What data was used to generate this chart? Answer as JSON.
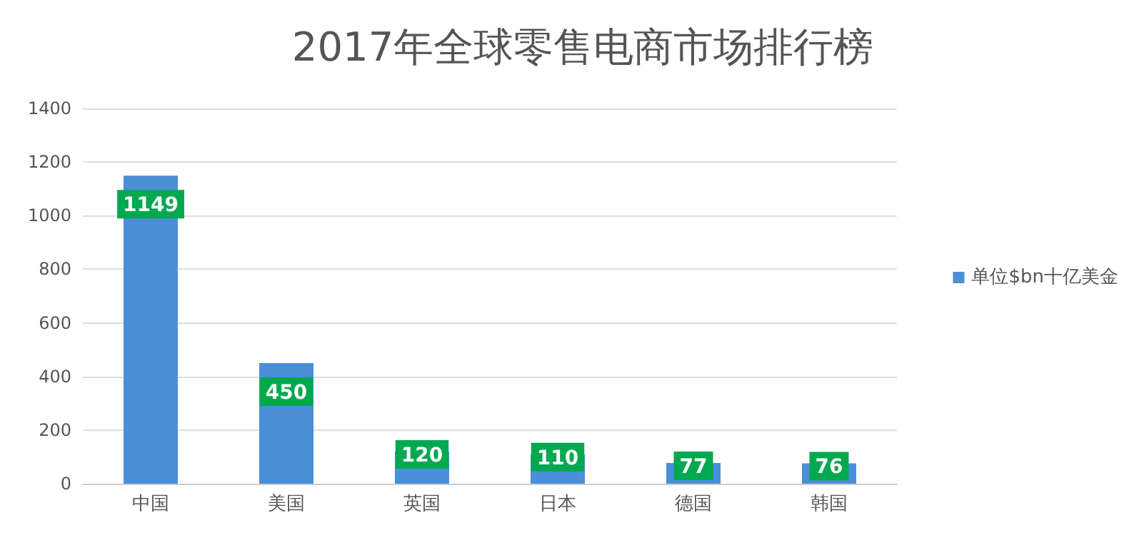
{
  "chart_data": {
    "type": "bar",
    "title": "2017年全球零售电商市场排行榜",
    "categories": [
      "中国",
      "美国",
      "英国",
      "日本",
      "德国",
      "韩国"
    ],
    "series": [
      {
        "name": "单位$bn十亿美金",
        "color": "#4a8fd8",
        "values": [
          1149,
          450,
          120,
          110,
          77,
          76
        ]
      }
    ],
    "ylim": [
      0,
      1400
    ],
    "yticks": [
      0,
      200,
      400,
      600,
      800,
      1000,
      1200,
      1400
    ],
    "grid": "y",
    "legend": "right",
    "data_labels": true
  }
}
